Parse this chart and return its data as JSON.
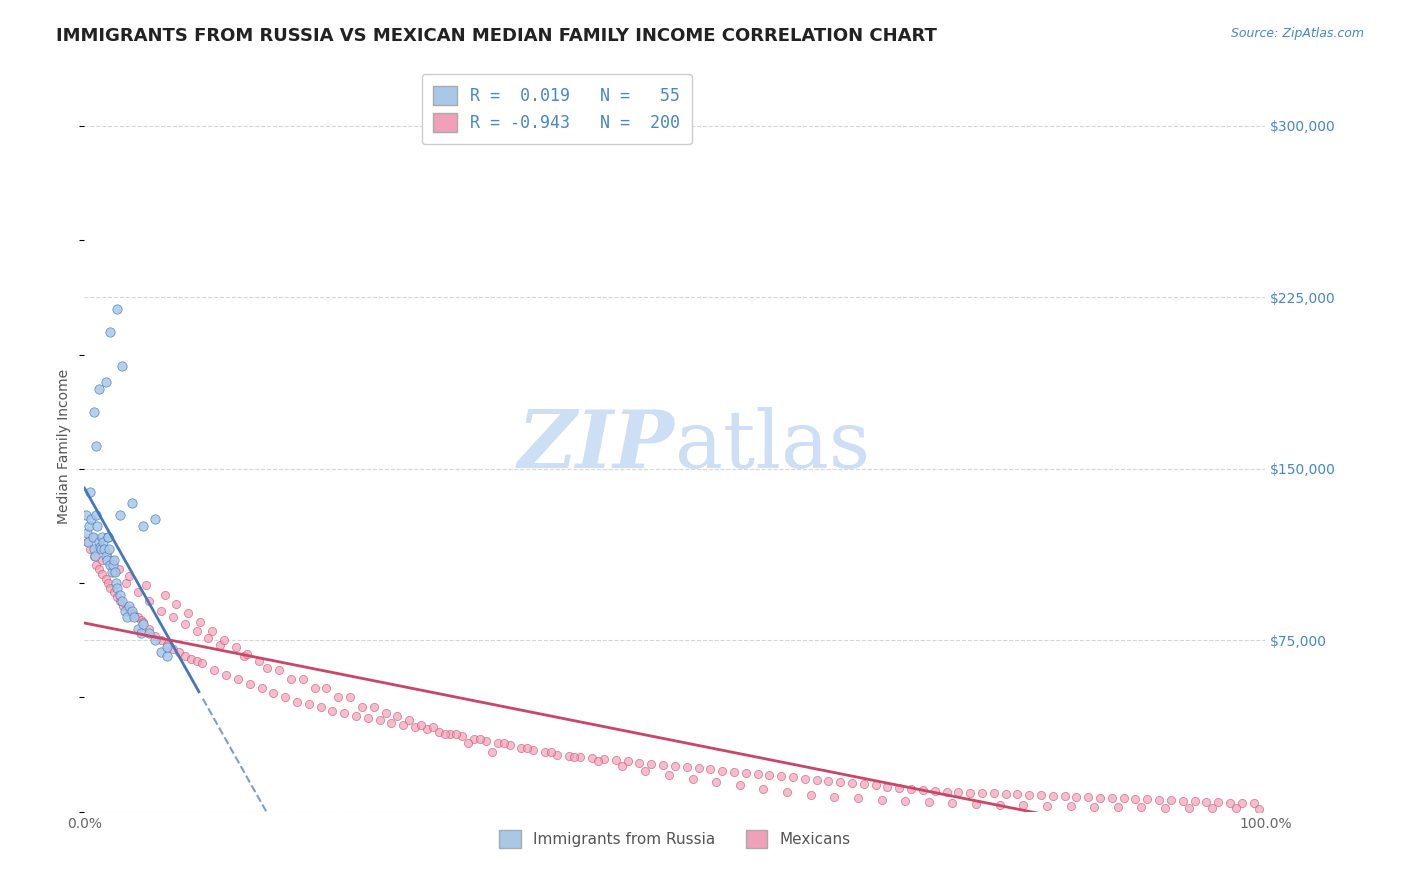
{
  "title": "IMMIGRANTS FROM RUSSIA VS MEXICAN MEDIAN FAMILY INCOME CORRELATION CHART",
  "source_text": "Source: ZipAtlas.com",
  "ylabel": "Median Family Income",
  "legend_label1": "Immigrants from Russia",
  "legend_label2": "Mexicans",
  "r1": 0.019,
  "n1": 55,
  "r2": -0.943,
  "n2": 200,
  "xlim": [
    0.0,
    1.0
  ],
  "ylim": [
    0,
    320000
  ],
  "yticks": [
    0,
    75000,
    150000,
    225000,
    300000
  ],
  "ytick_labels": [
    "",
    "$75,000",
    "$150,000",
    "$225,000",
    "$300,000"
  ],
  "xtick_labels": [
    "0.0%",
    "100.0%"
  ],
  "color_blue": "#a8c8e8",
  "color_pink": "#f0a0b8",
  "color_blue_line": "#4477bb",
  "color_pink_line": "#cc4466",
  "color_blue_text": "#4488cc",
  "color_grid": "#cccccc",
  "watermark_color": "#ccdff5",
  "background_color": "#ffffff",
  "title_fontsize": 13,
  "axis_label_fontsize": 10,
  "tick_label_fontsize": 10,
  "blue_scatter_x": [
    0.001,
    0.002,
    0.003,
    0.004,
    0.005,
    0.006,
    0.007,
    0.008,
    0.009,
    0.01,
    0.011,
    0.012,
    0.013,
    0.014,
    0.015,
    0.016,
    0.017,
    0.018,
    0.019,
    0.02,
    0.021,
    0.022,
    0.023,
    0.024,
    0.025,
    0.026,
    0.027,
    0.028,
    0.03,
    0.032,
    0.034,
    0.036,
    0.038,
    0.04,
    0.042,
    0.045,
    0.048,
    0.05,
    0.055,
    0.06,
    0.065,
    0.07,
    0.008,
    0.012,
    0.018,
    0.022,
    0.028,
    0.032,
    0.01,
    0.02,
    0.03,
    0.04,
    0.05,
    0.06,
    0.07
  ],
  "blue_scatter_y": [
    130000,
    122000,
    118000,
    125000,
    140000,
    128000,
    120000,
    115000,
    112000,
    130000,
    125000,
    118000,
    116000,
    115000,
    120000,
    118000,
    115000,
    112000,
    110000,
    120000,
    115000,
    108000,
    105000,
    108000,
    110000,
    105000,
    100000,
    98000,
    95000,
    92000,
    88000,
    85000,
    90000,
    88000,
    85000,
    80000,
    78000,
    82000,
    78000,
    75000,
    70000,
    68000,
    175000,
    185000,
    188000,
    210000,
    220000,
    195000,
    160000,
    120000,
    130000,
    135000,
    125000,
    128000,
    72000
  ],
  "pink_scatter_x": [
    0.002,
    0.005,
    0.008,
    0.01,
    0.012,
    0.015,
    0.018,
    0.02,
    0.022,
    0.025,
    0.028,
    0.03,
    0.033,
    0.036,
    0.038,
    0.04,
    0.042,
    0.045,
    0.048,
    0.05,
    0.055,
    0.06,
    0.065,
    0.07,
    0.075,
    0.08,
    0.085,
    0.09,
    0.095,
    0.1,
    0.11,
    0.12,
    0.13,
    0.14,
    0.15,
    0.16,
    0.17,
    0.18,
    0.19,
    0.2,
    0.21,
    0.22,
    0.23,
    0.24,
    0.25,
    0.26,
    0.27,
    0.28,
    0.29,
    0.3,
    0.31,
    0.32,
    0.33,
    0.34,
    0.35,
    0.36,
    0.37,
    0.38,
    0.39,
    0.4,
    0.41,
    0.42,
    0.43,
    0.44,
    0.45,
    0.46,
    0.47,
    0.48,
    0.49,
    0.5,
    0.51,
    0.52,
    0.53,
    0.54,
    0.55,
    0.56,
    0.57,
    0.58,
    0.59,
    0.6,
    0.61,
    0.62,
    0.63,
    0.64,
    0.65,
    0.66,
    0.67,
    0.68,
    0.69,
    0.7,
    0.71,
    0.72,
    0.73,
    0.74,
    0.75,
    0.76,
    0.77,
    0.78,
    0.79,
    0.8,
    0.81,
    0.82,
    0.83,
    0.84,
    0.85,
    0.86,
    0.87,
    0.88,
    0.89,
    0.9,
    0.91,
    0.92,
    0.93,
    0.94,
    0.95,
    0.96,
    0.97,
    0.98,
    0.99,
    0.015,
    0.025,
    0.035,
    0.045,
    0.055,
    0.065,
    0.075,
    0.085,
    0.095,
    0.105,
    0.115,
    0.135,
    0.155,
    0.175,
    0.195,
    0.215,
    0.235,
    0.255,
    0.275,
    0.295,
    0.315,
    0.335,
    0.355,
    0.375,
    0.395,
    0.415,
    0.435,
    0.455,
    0.475,
    0.495,
    0.515,
    0.535,
    0.555,
    0.575,
    0.595,
    0.615,
    0.635,
    0.655,
    0.675,
    0.695,
    0.715,
    0.735,
    0.755,
    0.775,
    0.795,
    0.815,
    0.835,
    0.855,
    0.875,
    0.895,
    0.915,
    0.935,
    0.955,
    0.975,
    0.995,
    0.007,
    0.013,
    0.019,
    0.023,
    0.029,
    0.038,
    0.052,
    0.068,
    0.078,
    0.088,
    0.098,
    0.108,
    0.118,
    0.128,
    0.138,
    0.148,
    0.165,
    0.185,
    0.205,
    0.225,
    0.245,
    0.265,
    0.285,
    0.305,
    0.325,
    0.345
  ],
  "pink_scatter_y": [
    118000,
    115000,
    112000,
    108000,
    106000,
    104000,
    102000,
    100000,
    98000,
    96000,
    94000,
    92000,
    90000,
    89000,
    88000,
    87000,
    86000,
    85000,
    84000,
    83000,
    80000,
    77000,
    75000,
    73000,
    71000,
    70000,
    68000,
    67000,
    66000,
    65000,
    62000,
    60000,
    58000,
    56000,
    54000,
    52000,
    50000,
    48000,
    47000,
    46000,
    44000,
    43000,
    42000,
    41000,
    40000,
    39000,
    38000,
    37000,
    36000,
    35000,
    34000,
    33000,
    32000,
    31000,
    30000,
    29000,
    28000,
    27000,
    26000,
    25000,
    24500,
    24000,
    23500,
    23000,
    22500,
    22000,
    21500,
    21000,
    20500,
    20000,
    19500,
    19000,
    18500,
    18000,
    17500,
    17000,
    16500,
    16000,
    15500,
    15000,
    14500,
    14000,
    13500,
    13000,
    12500,
    12000,
    11500,
    11000,
    10500,
    10000,
    9500,
    9000,
    8800,
    8600,
    8400,
    8200,
    8000,
    7800,
    7600,
    7400,
    7200,
    7000,
    6800,
    6600,
    6400,
    6200,
    6000,
    5800,
    5600,
    5400,
    5200,
    5000,
    4800,
    4600,
    4400,
    4200,
    4000,
    3800,
    3600,
    110000,
    105000,
    100000,
    96000,
    92000,
    88000,
    85000,
    82000,
    79000,
    76000,
    73000,
    68000,
    63000,
    58000,
    54000,
    50000,
    46000,
    43000,
    40000,
    37000,
    34000,
    32000,
    30000,
    28000,
    26000,
    24000,
    22000,
    20000,
    18000,
    16000,
    14500,
    13000,
    11500,
    10000,
    8500,
    7500,
    6500,
    5800,
    5200,
    4700,
    4200,
    3800,
    3400,
    3100,
    2800,
    2600,
    2400,
    2200,
    2000,
    1900,
    1800,
    1700,
    1600,
    1500,
    1400,
    120000,
    116000,
    113000,
    110000,
    106000,
    103000,
    99000,
    95000,
    91000,
    87000,
    83000,
    79000,
    75000,
    72000,
    69000,
    66000,
    62000,
    58000,
    54000,
    50000,
    46000,
    42000,
    38000,
    34000,
    30000,
    26000
  ]
}
